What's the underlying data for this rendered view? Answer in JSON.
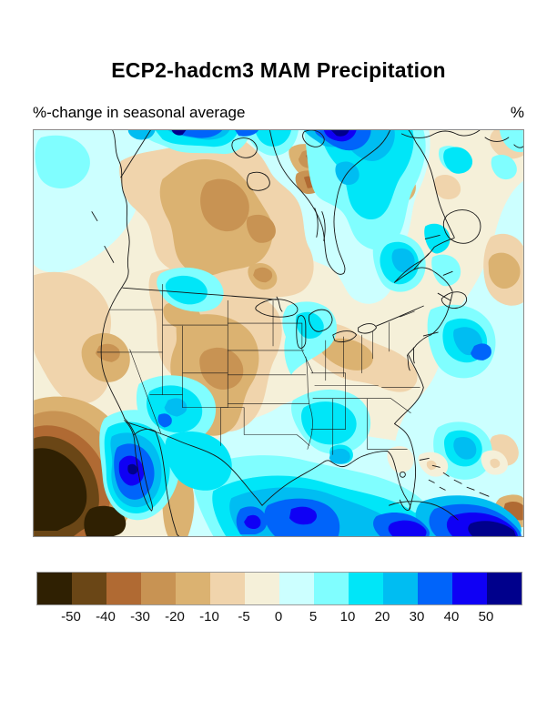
{
  "title": "ECP2-hadcm3 MAM Precipitation",
  "subtitle_left": "%-change in seasonal average",
  "unit_label": "%",
  "map": {
    "line_color": "#161616",
    "frame_color": "#8a8a8a",
    "region": "North America"
  },
  "palette": {
    "blackish_brown": "#2f2002",
    "dark_brown": "#6a4616",
    "sienna": "#b06a33",
    "brown": "#c89353",
    "tan": "#dbb271",
    "peach": "#f0d4ac",
    "cream": "#f5f0d9",
    "pale_cyan": "#ccffff",
    "light_cyan": "#80feff",
    "cyan": "#00e6f8",
    "deep_cyan": "#00bdf2",
    "blue": "#0064fa",
    "deep_blue": "#0f00f5",
    "navy": "#00008c"
  },
  "colorbar": {
    "colors": [
      "#2f2002",
      "#6a4616",
      "#b06a33",
      "#c89353",
      "#dbb271",
      "#f0d4ac",
      "#f5f0d9",
      "#ccffff",
      "#80feff",
      "#00e6f8",
      "#00bdf2",
      "#0064fa",
      "#0f00f5",
      "#00008c"
    ],
    "tick_labels": [
      "-50",
      "-40",
      "-30",
      "-20",
      "-10",
      "-5",
      "0",
      "5",
      "10",
      "20",
      "30",
      "40",
      "50"
    ]
  },
  "chart_data": {
    "type": "heatmap",
    "title": "ECP2-hadcm3 MAM Precipitation",
    "subtitle": "%-change in seasonal average",
    "units": "%",
    "region": "North America (contiguous US, Canada, Mexico, eastern Pacific, Gulf of Mexico, western Atlantic)",
    "legend_position": "bottom",
    "colorbar_levels": [
      -50,
      -40,
      -30,
      -20,
      -10,
      -5,
      0,
      5,
      10,
      20,
      30,
      40,
      50
    ],
    "colorbar_colors": [
      "#2f2002",
      "#6a4616",
      "#b06a33",
      "#c89353",
      "#dbb271",
      "#f0d4ac",
      "#f5f0d9",
      "#ccffff",
      "#80feff",
      "#00e6f8",
      "#00bdf2",
      "#0064fa",
      "#0f00f5",
      "#00008c"
    ],
    "qualitative_readings": [
      {
        "area": "western and central Canada (Prairies, NWT)",
        "value_pct": "-10 to -30"
      },
      {
        "area": "northern Rockies, Great Plains, Colorado/Wyoming",
        "value_pct": "-10 to -30"
      },
      {
        "area": "central California and offshore Pacific",
        "value_pct": "-10 to -20"
      },
      {
        "area": "Ohio Valley / mid-Atlantic band",
        "value_pct": "-5 to -20"
      },
      {
        "area": "eastern Pacific southwest of Mexico (map corner)",
        "value_pct": "-40 to -55"
      },
      {
        "area": "Hudson Bay, northern Quebec, Labrador",
        "value_pct": "+5 to +30"
      },
      {
        "area": "Arctic strip north of Hudson Bay (top of map)",
        "value_pct": "+30 to +55"
      },
      {
        "area": "southeastern US and Gulf coast",
        "value_pct": "+5 to +20"
      },
      {
        "area": "Gulf of California / Baja California",
        "value_pct": "+30 to +55"
      },
      {
        "area": "central Gulf of Mexico and Caribbean (bottom right)",
        "value_pct": "+30 to +55"
      },
      {
        "area": "western Atlantic offshore blobs",
        "value_pct": "+10 to +40"
      }
    ]
  }
}
